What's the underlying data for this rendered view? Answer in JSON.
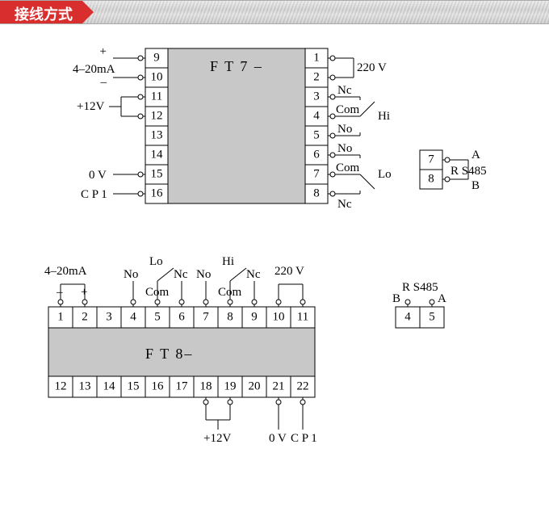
{
  "header": {
    "title": "接线方式"
  },
  "colors": {
    "header_red": "#d92e2e",
    "module_fill": "#c8c8c8",
    "line": "#000000"
  },
  "ft7": {
    "title": "F T 7 –",
    "pin_box_w": 28,
    "pin_box_h": 24,
    "left_pins": [
      9,
      10,
      11,
      12,
      13,
      14,
      15,
      16
    ],
    "right_pins": [
      1,
      2,
      3,
      4,
      5,
      6,
      7,
      8
    ],
    "left_labels": {
      "4_20mA": "4–20mA",
      "plus": "+",
      "minus": "–",
      "p12v": "+12V",
      "ov": "0 V",
      "cp1": "C P 1"
    },
    "right_labels": {
      "v220": "220 V",
      "nc1": "Nc",
      "com1": "Com",
      "no1": "No",
      "hi": "Hi",
      "no2": "No",
      "com2": "Com",
      "nc2": "Nc",
      "lo": "Lo"
    },
    "rs485": {
      "title": "R S485",
      "a": "A",
      "b": "B",
      "pins": [
        7,
        8
      ]
    }
  },
  "ft8": {
    "title": "F T 8–",
    "pin_box_w": 30,
    "pin_box_h": 26,
    "top_pins": [
      1,
      2,
      3,
      4,
      5,
      6,
      7,
      8,
      9,
      10,
      11
    ],
    "bottom_pins": [
      12,
      13,
      14,
      15,
      16,
      17,
      18,
      19,
      20,
      21,
      22
    ],
    "top_labels": {
      "4_20mA": "4–20mA",
      "minus": "–",
      "plus": "+",
      "lo": "Lo",
      "hi": "Hi",
      "no": "No",
      "com": "Com",
      "nc": "Nc",
      "v220": "220 V"
    },
    "bottom_labels": {
      "p12v": "+12V",
      "ov": "0 V",
      "cp1": "C P 1"
    },
    "rs485": {
      "title": "R S485",
      "a": "A",
      "b": "B",
      "pins": [
        4,
        5
      ]
    }
  }
}
